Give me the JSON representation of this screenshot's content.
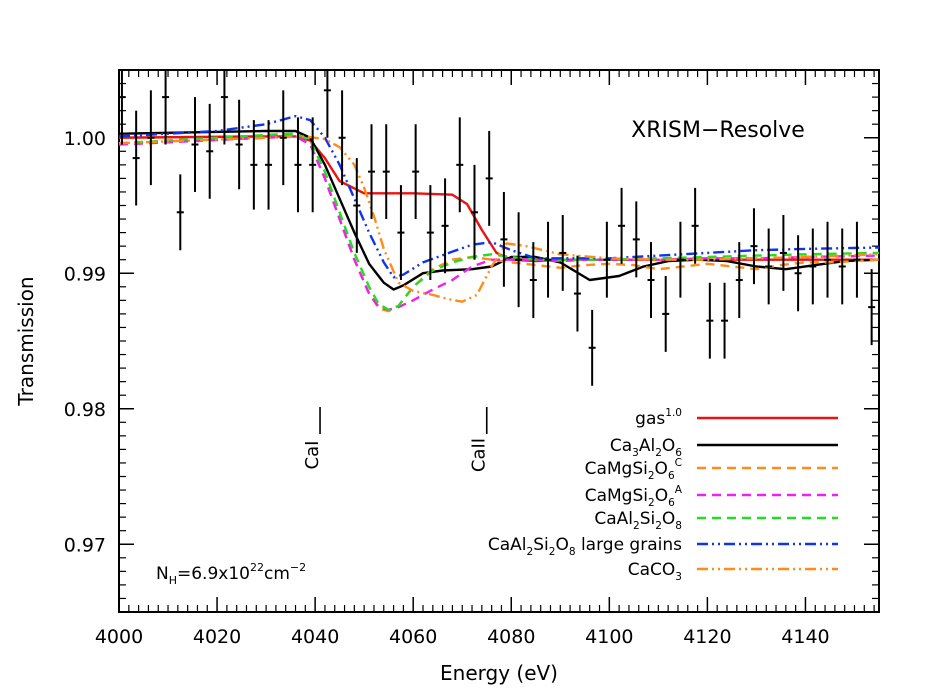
{
  "chart_data": {
    "type": "line",
    "annotation_title": "XRISM−Resolve",
    "xlabel": "Energy (eV)",
    "ylabel": "Transmission",
    "xlim": [
      4000,
      4155
    ],
    "ylim": [
      0.965,
      1.005
    ],
    "x_ticks": [
      4000,
      4020,
      4040,
      4060,
      4080,
      4100,
      4120,
      4140
    ],
    "x_tick_labels": [
      "4000",
      "4020",
      "4040",
      "4060",
      "4080",
      "4100",
      "4120",
      "4140"
    ],
    "y_ticks": [
      0.97,
      0.98,
      0.99,
      1.0
    ],
    "y_tick_labels": [
      "0.97",
      "0.98",
      "0.99",
      "1.00"
    ],
    "grid": false,
    "legend_position": "bottom-right",
    "column_density": {
      "prefix": "N",
      "sub": "H",
      "mid": "=6.9x10",
      "sup": "22",
      "unit": "cm",
      "unit_sup": "−2"
    },
    "edge_markers": [
      {
        "label": "CaI",
        "x": 4041
      },
      {
        "label": "CaII",
        "x": 4075
      }
    ],
    "legend": [
      {
        "parts": [
          {
            "t": "gas"
          },
          {
            "t": "1.0",
            "s": "sup"
          }
        ]
      },
      {
        "parts": [
          {
            "t": "Ca"
          },
          {
            "t": "3",
            "s": "sub"
          },
          {
            "t": "Al"
          },
          {
            "t": "2",
            "s": "sub"
          },
          {
            "t": "O"
          },
          {
            "t": "6",
            "s": "sub"
          }
        ]
      },
      {
        "parts": [
          {
            "t": "CaMgSi"
          },
          {
            "t": "2",
            "s": "sub"
          },
          {
            "t": "O"
          },
          {
            "t": "6",
            "s": "sub"
          },
          {
            "t": "C",
            "s": "sup"
          }
        ]
      },
      {
        "parts": [
          {
            "t": "CaMgSi"
          },
          {
            "t": "2",
            "s": "sub"
          },
          {
            "t": "O"
          },
          {
            "t": "6",
            "s": "sub"
          },
          {
            "t": "A",
            "s": "sup"
          }
        ]
      },
      {
        "parts": [
          {
            "t": "CaAl"
          },
          {
            "t": "2",
            "s": "sub"
          },
          {
            "t": "Si"
          },
          {
            "t": "2",
            "s": "sub"
          },
          {
            "t": "O"
          },
          {
            "t": "8",
            "s": "sub"
          }
        ]
      },
      {
        "parts": [
          {
            "t": "CaAl"
          },
          {
            "t": "2",
            "s": "sub"
          },
          {
            "t": "Si"
          },
          {
            "t": "2",
            "s": "sub"
          },
          {
            "t": "O"
          },
          {
            "t": "8",
            "s": "sub"
          },
          {
            "t": " large grains"
          }
        ]
      },
      {
        "parts": [
          {
            "t": "CaCO"
          },
          {
            "t": "3",
            "s": "sub"
          }
        ]
      }
    ],
    "data_points": {
      "x": [
        4000.6,
        4003.5,
        4006.5,
        4009.5,
        4012.5,
        4015.5,
        4018.5,
        4021.5,
        4024.5,
        4027.5,
        4030.5,
        4033.5,
        4036.5,
        4039.5,
        4042.5,
        4045.5,
        4048.5,
        4051.5,
        4054.5,
        4057.5,
        4060.5,
        4063.5,
        4066.5,
        4069.5,
        4072.5,
        4075.5,
        4078.5,
        4081.5,
        4084.5,
        4087.5,
        4090.5,
        4093.5,
        4096.5,
        4099.5,
        4102.5,
        4105.5,
        4108.5,
        4111.5,
        4114.5,
        4117.5,
        4120.5,
        4123.5,
        4126.5,
        4129.5,
        4132.5,
        4135.5,
        4138.5,
        4141.5,
        4144.5,
        4147.5,
        4150.5,
        4153.5
      ],
      "y": [
        1.003,
        0.9985,
        1.0,
        1.003,
        0.9945,
        0.9995,
        0.999,
        1.003,
        0.9995,
        0.998,
        0.998,
        1.0,
        0.998,
        0.998,
        1.0035,
        1.0,
        0.995,
        0.9975,
        0.9975,
        0.993,
        0.9975,
        0.993,
        0.9935,
        0.998,
        0.9945,
        0.997,
        0.9925,
        0.991,
        0.9895,
        0.991,
        0.9915,
        0.9885,
        0.9845,
        0.991,
        0.9935,
        0.9925,
        0.9895,
        0.987,
        0.991,
        0.9935,
        0.9865,
        0.9865,
        0.9895,
        0.992,
        0.9905,
        0.9915,
        0.99,
        0.9905,
        0.991,
        0.9905,
        0.991,
        0.9875
      ],
      "yerr": [
        0.0035,
        0.0035,
        0.0035,
        0.0035,
        0.0028,
        0.0035,
        0.0035,
        0.0035,
        0.0033,
        0.0033,
        0.0033,
        0.0035,
        0.0035,
        0.0035,
        0.0035,
        0.0035,
        0.0035,
        0.0035,
        0.0035,
        0.0035,
        0.0035,
        0.0035,
        0.0035,
        0.0035,
        0.0035,
        0.0035,
        0.0035,
        0.0035,
        0.0028,
        0.0028,
        0.0028,
        0.0028,
        0.0028,
        0.0028,
        0.0028,
        0.0028,
        0.0028,
        0.0028,
        0.0028,
        0.0028,
        0.0028,
        0.0028,
        0.0028,
        0.0028,
        0.0028,
        0.0028,
        0.0028,
        0.0028,
        0.0028,
        0.0028,
        0.0028,
        0.0028
      ]
    },
    "series": [
      {
        "color": "#ee1111",
        "dash": "solid",
        "x": [
          4000,
          4030,
          4036,
          4039,
          4042,
          4045,
          4050,
          4060,
          4068,
          4071,
          4074,
          4077,
          4080,
          4085,
          4090,
          4100,
          4110,
          4120,
          4130,
          4140,
          4155
        ],
        "y": [
          1.0,
          1.0001,
          1.0001,
          0.9998,
          0.9985,
          0.9968,
          0.9959,
          0.9959,
          0.9958,
          0.9951,
          0.9932,
          0.9915,
          0.991,
          0.9909,
          0.991,
          0.991,
          0.991,
          0.991,
          0.991,
          0.991,
          0.991
        ]
      },
      {
        "color": "#000000",
        "dash": "solid",
        "x": [
          4000,
          4030,
          4036,
          4039,
          4042,
          4045,
          4048,
          4051,
          4054,
          4056,
          4058,
          4062,
          4066,
          4072,
          4076,
          4080,
          4085,
          4090,
          4096,
          4102,
          4107,
          4112,
          4118,
          4124,
          4130,
          4136,
          4142,
          4148,
          4155
        ],
        "y": [
          1.0003,
          1.0005,
          1.0005,
          1.0,
          0.998,
          0.9955,
          0.993,
          0.9907,
          0.9893,
          0.9888,
          0.9891,
          0.99,
          0.9902,
          0.9903,
          0.9905,
          0.9912,
          0.9912,
          0.9908,
          0.9895,
          0.9898,
          0.9905,
          0.9909,
          0.991,
          0.9909,
          0.9905,
          0.9903,
          0.9906,
          0.9909,
          0.991
        ]
      },
      {
        "color": "#ff8c1a",
        "dash": "dashed",
        "x": [
          4000,
          4030,
          4036,
          4039,
          4042,
          4045,
          4048,
          4051,
          4053,
          4055,
          4057,
          4060,
          4064,
          4068,
          4072,
          4076,
          4080,
          4085,
          4090,
          4095,
          4100,
          4105,
          4110,
          4115,
          4120,
          4125,
          4130,
          4135,
          4140,
          4145,
          4150,
          4155
        ],
        "y": [
          0.9995,
          1.0,
          1.0001,
          0.9995,
          0.997,
          0.994,
          0.991,
          0.9885,
          0.9874,
          0.9872,
          0.9876,
          0.989,
          0.9903,
          0.991,
          0.9912,
          0.991,
          0.9908,
          0.9906,
          0.9904,
          0.9906,
          0.9907,
          0.9906,
          0.9903,
          0.9905,
          0.9907,
          0.9905,
          0.9903,
          0.9906,
          0.9908,
          0.9908,
          0.9909,
          0.991
        ]
      },
      {
        "color": "#ee22ee",
        "dash": "dashed",
        "x": [
          4000,
          4030,
          4036,
          4039,
          4042,
          4045,
          4048,
          4051,
          4053,
          4055,
          4057,
          4060,
          4064,
          4068,
          4072,
          4076,
          4080,
          4085,
          4090,
          4095,
          4100,
          4110,
          4120,
          4130,
          4140,
          4155
        ],
        "y": [
          0.9995,
          1.0,
          1.0001,
          0.9995,
          0.997,
          0.994,
          0.991,
          0.9885,
          0.9875,
          0.9873,
          0.9875,
          0.988,
          0.9888,
          0.9895,
          0.9905,
          0.991,
          0.991,
          0.991,
          0.9909,
          0.991,
          0.991,
          0.991,
          0.9911,
          0.9911,
          0.9912,
          0.9913
        ]
      },
      {
        "color": "#22dd22",
        "dash": "dashed",
        "x": [
          4000,
          4030,
          4036,
          4039,
          4042,
          4045,
          4048,
          4051,
          4053,
          4055,
          4057,
          4060,
          4064,
          4068,
          4072,
          4076,
          4080,
          4085,
          4090,
          4100,
          4110,
          4120,
          4130,
          4140,
          4155
        ],
        "y": [
          0.9996,
          1.0002,
          1.0003,
          0.9998,
          0.9975,
          0.9945,
          0.9915,
          0.989,
          0.9877,
          0.9873,
          0.9876,
          0.989,
          0.9902,
          0.9908,
          0.9912,
          0.9914,
          0.9912,
          0.991,
          0.991,
          0.991,
          0.9911,
          0.9912,
          0.9913,
          0.9914,
          0.9915
        ]
      },
      {
        "color": "#1133ee",
        "dash": "dashdotdot",
        "x": [
          4000,
          4020,
          4030,
          4036,
          4039,
          4042,
          4045,
          4048,
          4051,
          4054,
          4056,
          4058,
          4062,
          4068,
          4072,
          4076,
          4080,
          4085,
          4090,
          4100,
          4110,
          4120,
          4130,
          4140,
          4155
        ],
        "y": [
          1.0001,
          1.0005,
          1.001,
          1.0016,
          1.0013,
          1.0,
          0.998,
          0.9955,
          0.993,
          0.9908,
          0.9897,
          0.9899,
          0.9908,
          0.9916,
          0.9921,
          0.9923,
          0.9917,
          0.9911,
          0.9911,
          0.9911,
          0.9913,
          0.9915,
          0.9917,
          0.9918,
          0.9919
        ]
      },
      {
        "color": "#ff8c1a",
        "dash": "dashdotdot",
        "x": [
          4000,
          4030,
          4038,
          4042,
          4045,
          4048,
          4050,
          4052,
          4054,
          4057,
          4060,
          4064,
          4067,
          4070,
          4073,
          4076,
          4079,
          4083,
          4090,
          4100,
          4110,
          4120,
          4130,
          4140,
          4155
        ],
        "y": [
          0.9996,
          1.0,
          1.0001,
          0.9999,
          0.9993,
          0.998,
          0.9963,
          0.9942,
          0.9918,
          0.9893,
          0.9887,
          0.9884,
          0.9881,
          0.9879,
          0.9884,
          0.9905,
          0.9922,
          0.992,
          0.9914,
          0.9911,
          0.991,
          0.991,
          0.9911,
          0.9912,
          0.9914
        ]
      }
    ]
  }
}
